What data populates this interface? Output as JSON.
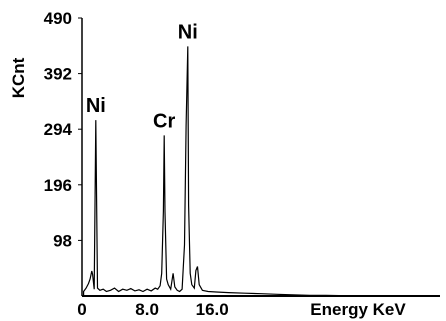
{
  "chart_data": {
    "type": "line",
    "title": "",
    "xlabel": "Energy KeV",
    "ylabel": "KCnt",
    "xlim": [
      0,
      44
    ],
    "ylim": [
      0,
      490
    ],
    "x_ticks": [
      0,
      8.0,
      16.0
    ],
    "x_tick_labels": [
      "0",
      "8.0",
      "16.0"
    ],
    "y_ticks": [
      98,
      196,
      294,
      392,
      490
    ],
    "y_tick_labels": [
      "98",
      "196",
      "294",
      "392",
      "490"
    ],
    "grid": false,
    "series": [
      {
        "points": [
          [
            0.2,
            8
          ],
          [
            0.5,
            14
          ],
          [
            0.8,
            22
          ],
          [
            1.0,
            30
          ],
          [
            1.2,
            44
          ],
          [
            1.3,
            38
          ],
          [
            1.5,
            12
          ],
          [
            1.7,
            310
          ],
          [
            1.9,
            14
          ],
          [
            2.2,
            10
          ],
          [
            2.6,
            12
          ],
          [
            3.0,
            8
          ],
          [
            3.5,
            10
          ],
          [
            4.0,
            14
          ],
          [
            4.5,
            8
          ],
          [
            5.0,
            12
          ],
          [
            5.5,
            10
          ],
          [
            6.0,
            13
          ],
          [
            6.5,
            9
          ],
          [
            7.0,
            11
          ],
          [
            7.5,
            8
          ],
          [
            8.0,
            12
          ],
          [
            8.5,
            9
          ],
          [
            9.0,
            14
          ],
          [
            9.3,
            12
          ],
          [
            9.6,
            18
          ],
          [
            9.8,
            40
          ],
          [
            10.0,
            150
          ],
          [
            10.1,
            283
          ],
          [
            10.2,
            148
          ],
          [
            10.4,
            30
          ],
          [
            10.6,
            20
          ],
          [
            10.9,
            12
          ],
          [
            11.2,
            40
          ],
          [
            11.4,
            16
          ],
          [
            11.7,
            10
          ],
          [
            12.0,
            8
          ],
          [
            12.3,
            12
          ],
          [
            12.6,
            90
          ],
          [
            12.8,
            300
          ],
          [
            13.0,
            440
          ],
          [
            13.1,
            160
          ],
          [
            13.3,
            40
          ],
          [
            13.5,
            20
          ],
          [
            13.8,
            14
          ],
          [
            14.0,
            45
          ],
          [
            14.2,
            52
          ],
          [
            14.4,
            20
          ],
          [
            14.8,
            10
          ],
          [
            15.5,
            8
          ],
          [
            16.5,
            7
          ],
          [
            18.0,
            6
          ],
          [
            20.0,
            5
          ],
          [
            22.0,
            4
          ],
          [
            24.0,
            3
          ],
          [
            26.0,
            2
          ],
          [
            28.0,
            1
          ],
          [
            30.0,
            1
          ],
          [
            34.0,
            0
          ],
          [
            44.0,
            0
          ]
        ]
      }
    ],
    "annotations": [
      {
        "text": "Ni",
        "x": 1.7,
        "y": 310
      },
      {
        "text": "Cr",
        "x": 10.1,
        "y": 283
      },
      {
        "text": "Ni",
        "x": 13.0,
        "y": 440
      }
    ]
  }
}
